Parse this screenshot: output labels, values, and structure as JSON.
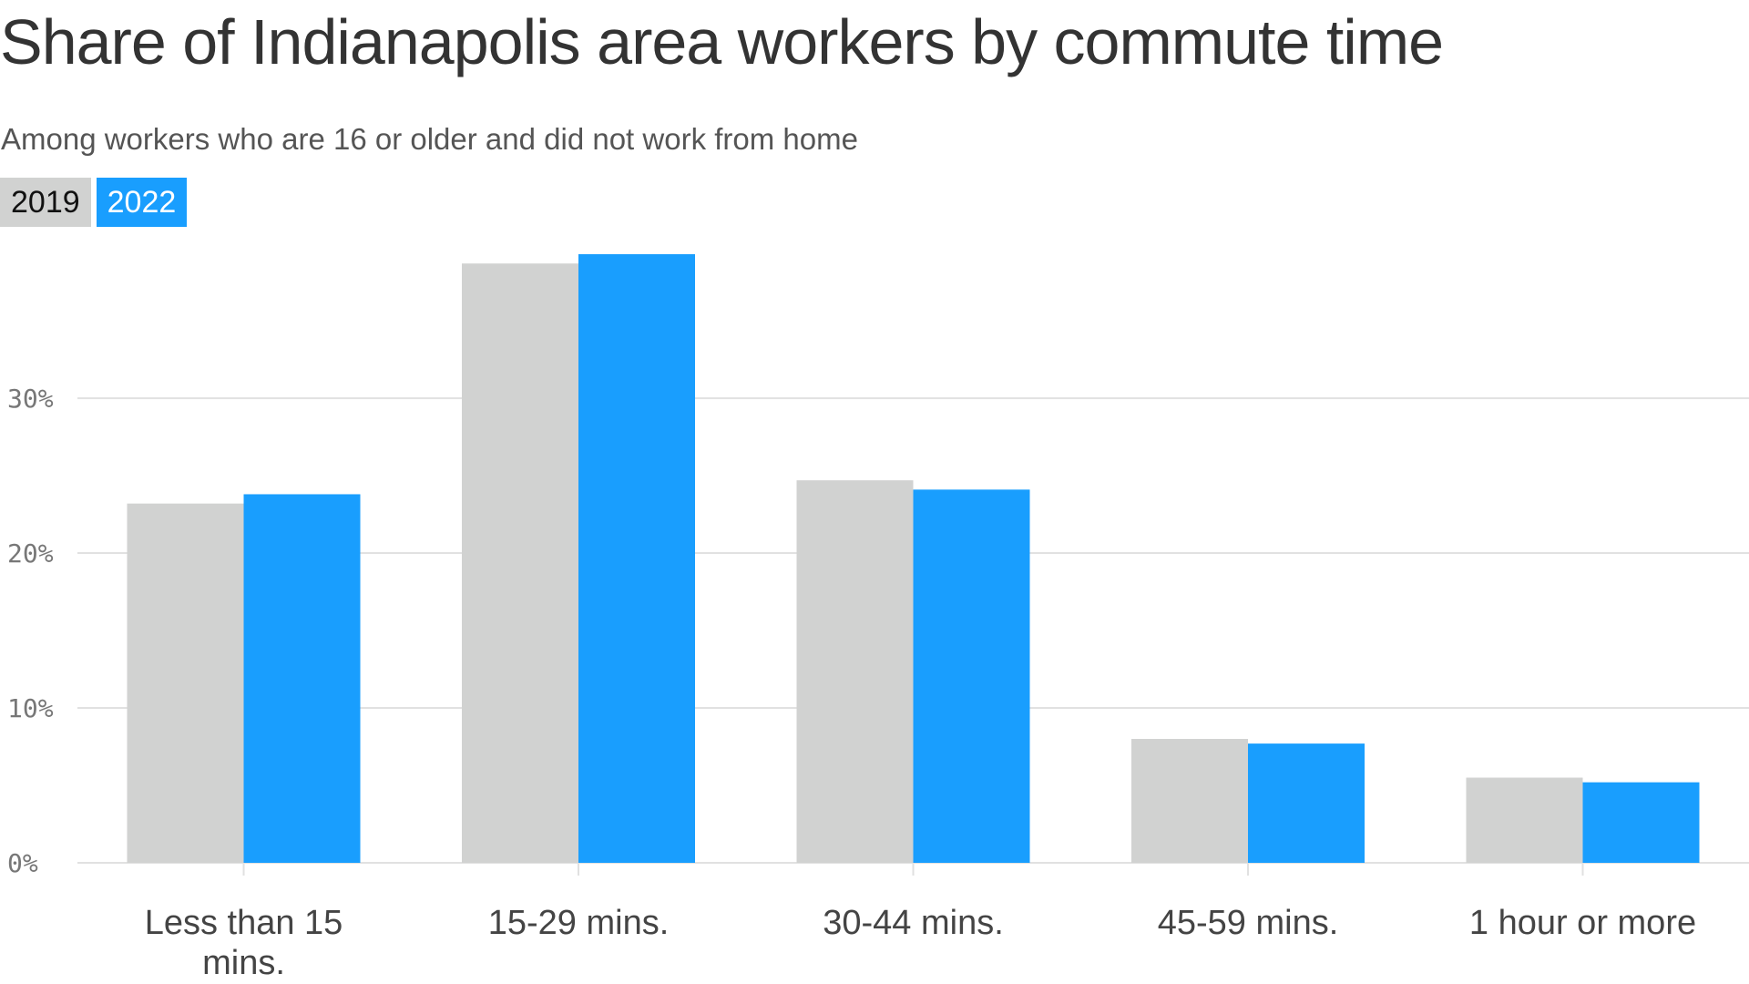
{
  "chart_data": {
    "type": "bar",
    "title": "Share of Indianapolis area workers by commute time",
    "subtitle": "Among workers who are 16 or older and did not work from home",
    "categories": [
      [
        "Less than 15",
        "mins."
      ],
      [
        "15-29 mins."
      ],
      [
        "30-44 mins."
      ],
      [
        "45-59 mins."
      ],
      [
        "1 hour or more"
      ]
    ],
    "series": [
      {
        "name": "2019",
        "color": "#d1d2d1",
        "values": [
          23.2,
          38.7,
          24.7,
          8.0,
          5.5
        ]
      },
      {
        "name": "2022",
        "color": "#199efe",
        "values": [
          23.8,
          39.3,
          24.1,
          7.7,
          5.2
        ]
      }
    ],
    "ylim": [
      0,
      39.3
    ],
    "yticks": [
      0,
      10,
      20,
      30
    ],
    "ytick_labels": [
      "0%",
      "10%",
      "20%",
      "30%"
    ],
    "grid": true,
    "legend_placement": "top-left"
  }
}
